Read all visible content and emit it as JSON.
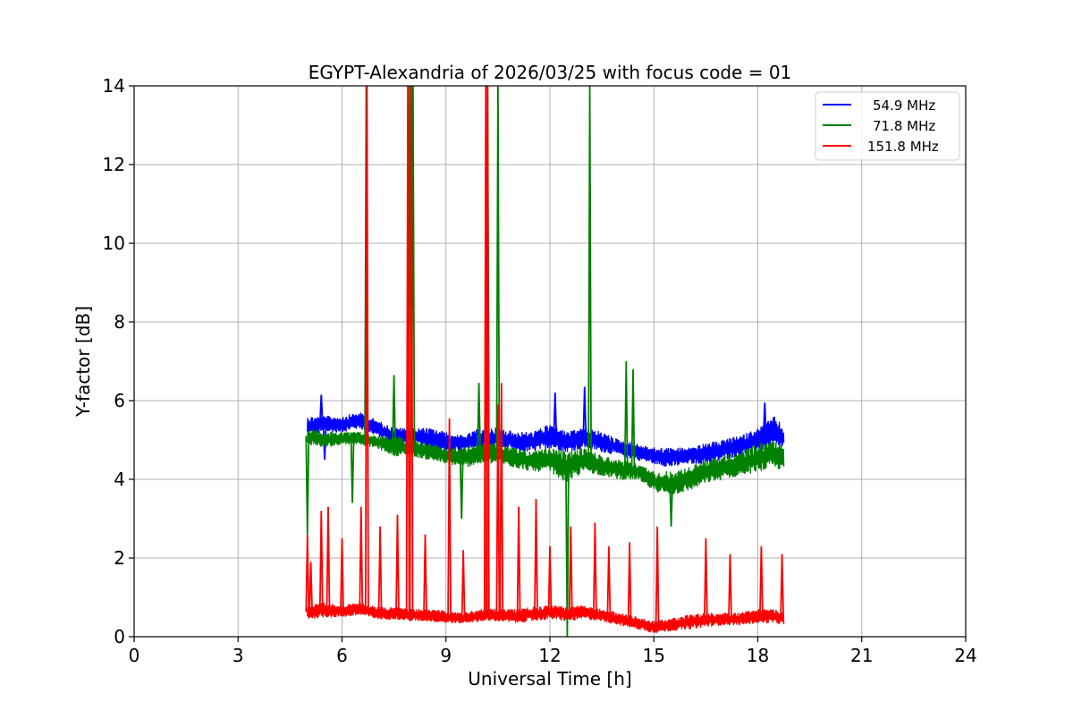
{
  "chart_data": {
    "type": "line",
    "title": "EGYPT-Alexandria of 2026/03/25 with focus code = 01",
    "xlabel": "Universal Time [h]",
    "ylabel": "Y-factor [dB]",
    "xlim": [
      0,
      24
    ],
    "ylim": [
      0,
      14
    ],
    "xticks": [
      0,
      3,
      6,
      9,
      12,
      15,
      18,
      21,
      24
    ],
    "yticks": [
      0,
      2,
      4,
      6,
      8,
      10,
      12,
      14
    ],
    "grid": true,
    "legend_position": "top-right",
    "series": [
      {
        "name": "54.9 MHz",
        "color": "#0000ff",
        "band_x": [
          5.0,
          5.5,
          6.0,
          6.5,
          7.0,
          7.5,
          8.0,
          8.5,
          9.0,
          9.5,
          10.0,
          10.5,
          11.0,
          11.5,
          12.0,
          12.5,
          13.0,
          13.5,
          14.0,
          14.5,
          15.0,
          15.5,
          16.0,
          16.5,
          17.0,
          17.5,
          18.0,
          18.5,
          18.75
        ],
        "band_low": [
          5.1,
          5.2,
          5.2,
          5.3,
          5.1,
          4.9,
          4.9,
          4.8,
          4.7,
          4.7,
          4.8,
          4.8,
          4.7,
          4.7,
          4.8,
          4.7,
          4.8,
          4.7,
          4.6,
          4.5,
          4.4,
          4.3,
          4.4,
          4.4,
          4.5,
          4.6,
          4.7,
          4.8,
          4.8
        ],
        "band_high": [
          5.6,
          5.6,
          5.6,
          5.7,
          5.5,
          5.3,
          5.3,
          5.3,
          5.2,
          5.1,
          5.3,
          5.3,
          5.2,
          5.2,
          5.4,
          5.2,
          5.3,
          5.2,
          5.0,
          4.9,
          4.8,
          4.8,
          4.8,
          4.9,
          5.0,
          5.1,
          5.3,
          5.6,
          5.3
        ],
        "spikes": [
          [
            5.4,
            6.15
          ],
          [
            5.5,
            4.5
          ],
          [
            13.0,
            6.35
          ],
          [
            12.15,
            6.2
          ],
          [
            18.2,
            5.95
          ]
        ]
      },
      {
        "name": "71.8 MHz",
        "color": "#008000",
        "band_x": [
          5.0,
          5.5,
          6.0,
          6.5,
          7.0,
          7.5,
          8.0,
          8.5,
          9.0,
          9.5,
          10.0,
          10.5,
          11.0,
          11.5,
          12.0,
          12.5,
          13.0,
          13.5,
          14.0,
          14.5,
          15.0,
          15.5,
          16.0,
          16.5,
          17.0,
          17.5,
          18.0,
          18.5,
          18.75
        ],
        "band_low": [
          4.9,
          4.8,
          4.9,
          4.9,
          4.8,
          4.6,
          4.6,
          4.5,
          4.4,
          4.3,
          4.4,
          4.4,
          4.3,
          4.2,
          4.2,
          3.9,
          4.2,
          4.1,
          4.0,
          4.0,
          3.7,
          3.6,
          3.7,
          3.9,
          4.0,
          4.1,
          4.2,
          4.3,
          4.2
        ],
        "band_high": [
          5.3,
          5.2,
          5.2,
          5.2,
          5.1,
          5.1,
          5.0,
          4.9,
          4.8,
          4.8,
          4.9,
          4.9,
          4.8,
          4.7,
          4.8,
          4.7,
          4.8,
          4.6,
          4.5,
          4.4,
          4.2,
          4.2,
          4.3,
          4.5,
          4.6,
          4.7,
          4.9,
          5.0,
          4.9
        ],
        "spikes": [
          [
            6.7,
            14
          ],
          [
            7.95,
            14
          ],
          [
            8.05,
            14
          ],
          [
            10.2,
            14
          ],
          [
            10.5,
            14
          ],
          [
            13.15,
            14
          ],
          [
            7.5,
            6.65
          ],
          [
            9.95,
            6.45
          ],
          [
            14.2,
            7.0
          ],
          [
            14.4,
            6.8
          ],
          [
            5.0,
            2.6
          ],
          [
            6.3,
            3.4
          ],
          [
            9.45,
            3.0
          ],
          [
            12.5,
            0.0
          ],
          [
            15.5,
            2.8
          ]
        ]
      },
      {
        "name": "151.8 MHz",
        "color": "#ff0000",
        "band_x": [
          5.0,
          5.5,
          6.0,
          6.5,
          7.0,
          7.5,
          8.0,
          8.5,
          9.0,
          9.5,
          10.0,
          10.5,
          11.0,
          11.5,
          12.0,
          12.5,
          13.0,
          13.5,
          14.0,
          14.5,
          15.0,
          15.5,
          16.0,
          16.5,
          17.0,
          17.5,
          18.0,
          18.5,
          18.75
        ],
        "band_low": [
          0.45,
          0.5,
          0.5,
          0.55,
          0.45,
          0.45,
          0.4,
          0.4,
          0.35,
          0.35,
          0.4,
          0.4,
          0.35,
          0.4,
          0.45,
          0.4,
          0.45,
          0.4,
          0.3,
          0.2,
          0.1,
          0.15,
          0.2,
          0.25,
          0.3,
          0.3,
          0.35,
          0.35,
          0.3
        ],
        "band_high": [
          0.8,
          0.85,
          0.8,
          0.85,
          0.75,
          0.75,
          0.7,
          0.7,
          0.65,
          0.6,
          0.7,
          0.7,
          0.7,
          0.75,
          0.8,
          0.75,
          0.8,
          0.7,
          0.6,
          0.5,
          0.4,
          0.45,
          0.55,
          0.6,
          0.6,
          0.6,
          0.7,
          0.7,
          0.6
        ],
        "spikes": [
          [
            6.72,
            14
          ],
          [
            7.9,
            14
          ],
          [
            8.0,
            14
          ],
          [
            10.15,
            14
          ],
          [
            10.2,
            14
          ],
          [
            10.6,
            6.45
          ],
          [
            10.5,
            5.9
          ],
          [
            9.1,
            5.55
          ],
          [
            5.0,
            2.6
          ],
          [
            5.1,
            1.9
          ],
          [
            5.4,
            3.2
          ],
          [
            5.6,
            3.3
          ],
          [
            6.0,
            2.5
          ],
          [
            6.55,
            3.3
          ],
          [
            7.1,
            2.8
          ],
          [
            7.6,
            3.1
          ],
          [
            8.4,
            2.6
          ],
          [
            9.5,
            2.2
          ],
          [
            11.1,
            3.3
          ],
          [
            11.6,
            3.5
          ],
          [
            12.0,
            2.3
          ],
          [
            12.6,
            2.8
          ],
          [
            13.3,
            2.9
          ],
          [
            13.7,
            2.3
          ],
          [
            14.3,
            2.4
          ],
          [
            15.1,
            2.8
          ],
          [
            16.5,
            2.5
          ],
          [
            17.2,
            2.1
          ],
          [
            18.1,
            2.3
          ],
          [
            18.7,
            2.1
          ]
        ]
      }
    ]
  }
}
